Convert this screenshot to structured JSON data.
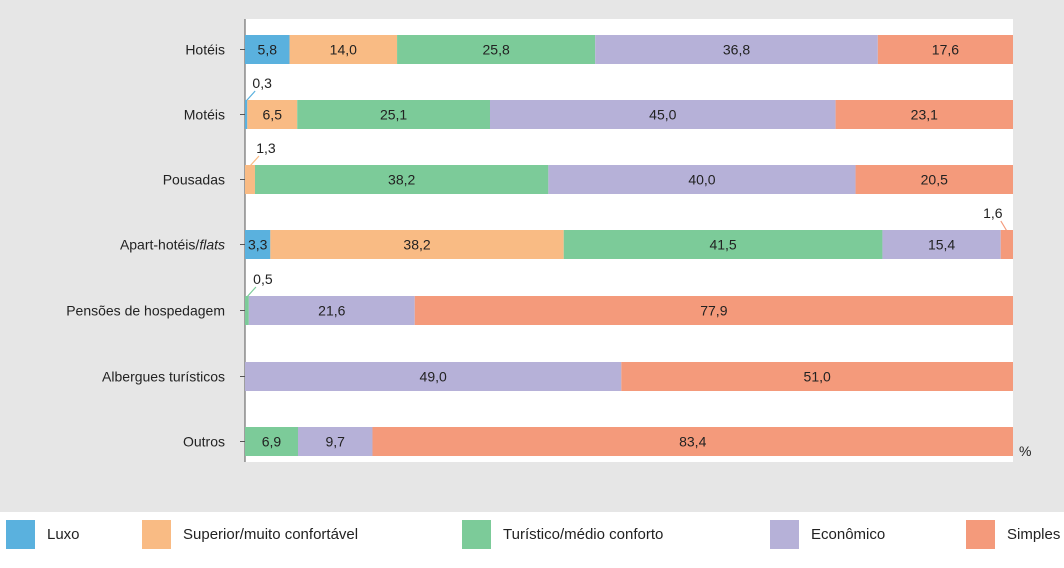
{
  "colors": {
    "Luxo": "#5ab1de",
    "Superior/muito confortável": "#f9bb84",
    "Turístico/médio conforto": "#7ccb99",
    "Econômico": "#b6b1d8",
    "Simples": "#f49a7b"
  },
  "unit_label": "%",
  "chart_data": {
    "type": "bar",
    "orientation": "horizontal",
    "stacked": true,
    "categories": [
      "Hotéis",
      "Motéis",
      "Pousadas",
      "Apart-hotéis/flats",
      "Pensões de hospedagem",
      "Albergues turísticos",
      "Outros"
    ],
    "category_italic_suffix": {
      "Apart-hotéis/flats": "flats"
    },
    "xlim": [
      0,
      100
    ],
    "xlabel": "%",
    "series": [
      {
        "name": "Luxo",
        "values": [
          5.8,
          0.3,
          0.0,
          3.3,
          0.0,
          0.0,
          0.0
        ],
        "labels": [
          "5,8",
          "0,3",
          "",
          "3,3",
          "",
          "",
          ""
        ]
      },
      {
        "name": "Superior/muito confortável",
        "values": [
          14.0,
          6.5,
          1.3,
          38.2,
          0.0,
          0.0,
          0.0
        ],
        "labels": [
          "14,0",
          "6,5",
          "1,3",
          "38,2",
          "",
          "",
          ""
        ]
      },
      {
        "name": "Turístico/médio conforto",
        "values": [
          25.8,
          25.1,
          38.2,
          41.5,
          0.5,
          0.0,
          6.9
        ],
        "labels": [
          "25,8",
          "25,1",
          "38,2",
          "41,5",
          "0,5",
          "",
          "6,9"
        ]
      },
      {
        "name": "Econômico",
        "values": [
          36.8,
          45.0,
          40.0,
          15.4,
          21.6,
          49.0,
          9.7
        ],
        "labels": [
          "36,8",
          "45,0",
          "40,0",
          "15,4",
          "21,6",
          "49,0",
          "9,7"
        ]
      },
      {
        "name": "Simples",
        "values": [
          17.6,
          23.1,
          20.5,
          1.6,
          77.9,
          51.0,
          83.4
        ],
        "labels": [
          "17,6",
          "23,1",
          "20,5",
          "1,6",
          "77,9",
          "51,0",
          "83,4"
        ]
      }
    ],
    "legend": [
      "Luxo",
      "Superior/muito confortável",
      "Turístico/médio conforto",
      "Econômico",
      "Simples"
    ],
    "legend_position": "bottom",
    "grid": false
  }
}
